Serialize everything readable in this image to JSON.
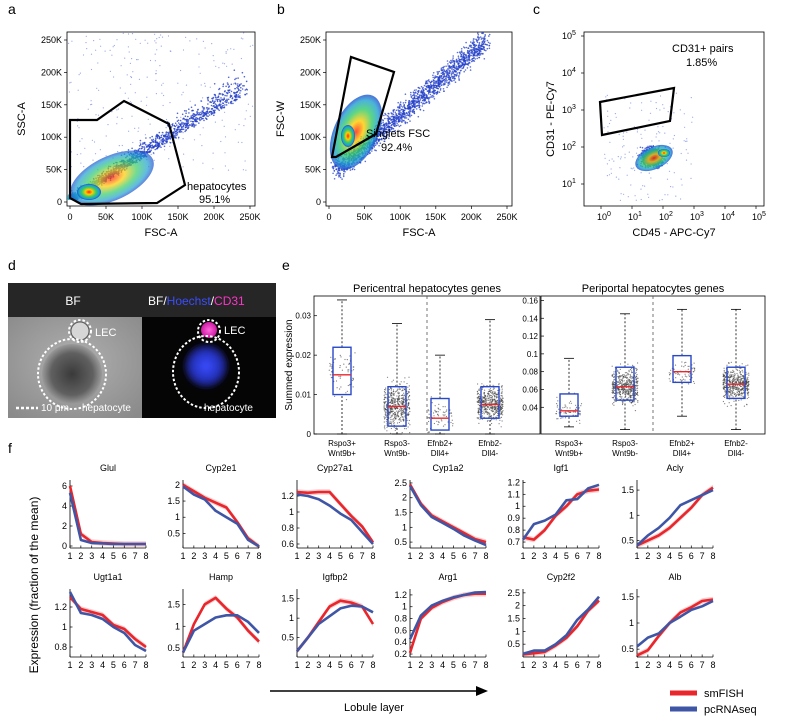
{
  "panel_letters": {
    "a": "a",
    "b": "b",
    "c": "c",
    "d": "d",
    "e": "e",
    "f": "f"
  },
  "flow": [
    {
      "id": "a",
      "xlabel": "FSC-A",
      "ylabel": "SSC-A",
      "xticks": [
        "0",
        "50K",
        "100K",
        "150K",
        "200K",
        "250K"
      ],
      "yticks": [
        "0",
        "50K",
        "100K",
        "150K",
        "200K",
        "250K"
      ],
      "gate_name": "hepatocytes",
      "gate_pct": "95.1%"
    },
    {
      "id": "b",
      "xlabel": "FSC-A",
      "ylabel": "FSC-W",
      "xticks": [
        "0",
        "50K",
        "100K",
        "150K",
        "200K",
        "250K"
      ],
      "yticks": [
        "0",
        "50K",
        "100K",
        "150K",
        "200K",
        "250K"
      ],
      "gate_name": "Singlets FSC",
      "gate_pct": "92.4%"
    },
    {
      "id": "c",
      "xlabel": "CD45 - APC-Cy7",
      "ylabel": "CD31 - PE-Cy7",
      "xticks": [
        "10^0",
        "10^1",
        "10^2",
        "10^3",
        "10^4",
        "10^5"
      ],
      "yticks": [
        "10^1",
        "10^2",
        "10^3",
        "10^4",
        "10^5"
      ],
      "gate_name": "CD31+ pairs",
      "gate_pct": "1.85%"
    }
  ],
  "microscopy": {
    "bf_label": "BF",
    "merge_label": {
      "bf": "BF/",
      "hoechst": "Hoechst",
      "slash": "/",
      "cd31": "CD31"
    },
    "lec_label": "LEC",
    "hep_label": "hepatocyte",
    "scale_label": "10 μm",
    "colors": {
      "hoechst": "#3a4dff",
      "cd31": "#ff33cc"
    }
  },
  "chart_data": [
    {
      "type": "box",
      "panel": "e-left",
      "title": "Pericentral hepatocytes genes",
      "ylabel": "Summed expression",
      "ylim": [
        0,
        0.035
      ],
      "yticks": [
        "0",
        "0.01",
        "0.02",
        "0.03"
      ],
      "categories": [
        [
          "Rspo3+",
          "Wnt9b+"
        ],
        [
          "Rspo3-",
          "Wnt9b-"
        ],
        [
          "Efnb2+",
          "Dll4+"
        ],
        [
          "Efnb2-",
          "Dll4-"
        ]
      ],
      "boxes": [
        {
          "q1": 0.01,
          "median": 0.015,
          "q3": 0.022,
          "whisker_low": 0.0,
          "whisker_high": 0.034
        },
        {
          "q1": 0.002,
          "median": 0.007,
          "q3": 0.012,
          "whisker_low": 0.0,
          "whisker_high": 0.028
        },
        {
          "q1": 0.001,
          "median": 0.004,
          "q3": 0.009,
          "whisker_low": 0.0,
          "whisker_high": 0.02
        },
        {
          "q1": 0.004,
          "median": 0.0075,
          "q3": 0.012,
          "whisker_low": 0.0,
          "whisker_high": 0.029
        }
      ]
    },
    {
      "type": "box",
      "panel": "e-right",
      "title": "Periportal hepatocytes genes",
      "ylabel": "",
      "ylim": [
        0.01,
        0.165
      ],
      "yticks": [
        "0.04",
        "0.06",
        "0.08",
        "0.1",
        "0.12",
        "0.14",
        "0.16"
      ],
      "categories": [
        [
          "Rspo3+",
          "Wnt9b+"
        ],
        [
          "Rspo3-",
          "Wnt9b-"
        ],
        [
          "Efnb2+",
          "Dll4+"
        ],
        [
          "Efnb2-",
          "Dll4-"
        ]
      ],
      "boxes": [
        {
          "q1": 0.03,
          "median": 0.036,
          "q3": 0.055,
          "whisker_low": 0.018,
          "whisker_high": 0.095
        },
        {
          "q1": 0.048,
          "median": 0.063,
          "q3": 0.085,
          "whisker_low": 0.015,
          "whisker_high": 0.145
        },
        {
          "q1": 0.068,
          "median": 0.08,
          "q3": 0.098,
          "whisker_low": 0.03,
          "whisker_high": 0.15
        },
        {
          "q1": 0.05,
          "median": 0.066,
          "q3": 0.085,
          "whisker_low": 0.015,
          "whisker_high": 0.15
        }
      ]
    },
    {
      "type": "line",
      "panel": "f",
      "xlabel": "Lobule layer",
      "ylabel": "Expression (fraction of the mean)",
      "x": [
        1,
        2,
        3,
        4,
        5,
        6,
        7,
        8
      ],
      "legend": [
        {
          "name": "smFISH",
          "color": "#e8262c"
        },
        {
          "name": "pcRNAseq",
          "color": "#3f56a6"
        }
      ],
      "genes": [
        {
          "name": "Glul",
          "ylim": [
            -0.2,
            6.6
          ],
          "yticks": [
            0,
            2,
            4,
            6
          ],
          "ytick_labels": [
            "0",
            "2",
            "4",
            "6"
          ],
          "smFISH": [
            6.0,
            1.2,
            0.4,
            0.3,
            0.25,
            0.2,
            0.2,
            0.2
          ],
          "pcRNAseq": [
            5.3,
            0.6,
            0.3,
            0.25,
            0.2,
            0.2,
            0.2,
            0.2
          ]
        },
        {
          "name": "Cyp2e1",
          "ylim": [
            0.05,
            2.15
          ],
          "yticks": [
            0.5,
            1,
            1.5,
            2
          ],
          "ytick_labels": [
            "0.5",
            "1",
            "1.5",
            "2"
          ],
          "smFISH": [
            2.0,
            1.8,
            1.6,
            1.45,
            1.3,
            0.85,
            0.35,
            0.1
          ],
          "pcRNAseq": [
            1.95,
            1.7,
            1.55,
            1.2,
            1.0,
            0.8,
            0.3,
            0.1
          ]
        },
        {
          "name": "Cyp27a1",
          "ylim": [
            0.55,
            1.4
          ],
          "yticks": [
            0.6,
            0.8,
            1,
            1.2
          ],
          "ytick_labels": [
            "0.6",
            "0.8",
            "1",
            "1.2"
          ],
          "smFISH": [
            1.25,
            1.24,
            1.25,
            1.25,
            1.1,
            0.95,
            0.82,
            0.62
          ],
          "pcRNAseq": [
            1.22,
            1.2,
            1.16,
            1.08,
            0.98,
            0.9,
            0.75,
            0.6
          ]
        },
        {
          "name": "Cyp1a2",
          "ylim": [
            0.3,
            2.6
          ],
          "yticks": [
            0.5,
            1,
            1.5,
            2,
            2.5
          ],
          "ytick_labels": [
            "0.5",
            "1",
            "1.5",
            "2",
            "2.5"
          ],
          "smFISH": [
            2.45,
            1.8,
            1.4,
            1.2,
            1.0,
            0.8,
            0.6,
            0.5
          ],
          "pcRNAseq": [
            2.4,
            1.75,
            1.35,
            1.15,
            0.95,
            0.72,
            0.55,
            0.4
          ]
        },
        {
          "name": "Igf1",
          "ylim": [
            0.65,
            1.22
          ],
          "yticks": [
            0.7,
            0.8,
            0.9,
            1,
            1.1,
            1.2
          ],
          "ytick_labels": [
            "0.7",
            "0.8",
            "0.9",
            "1",
            "1.1",
            "1.2"
          ],
          "smFISH": [
            0.74,
            0.72,
            0.8,
            0.92,
            1.0,
            1.1,
            1.13,
            1.14
          ],
          "pcRNAseq": [
            0.72,
            0.85,
            0.88,
            0.93,
            1.05,
            1.06,
            1.15,
            1.18
          ]
        },
        {
          "name": "Acly",
          "ylim": [
            0.35,
            1.7
          ],
          "yticks": [
            0.5,
            1,
            1.5
          ],
          "ytick_labels": [
            "0.5",
            "1",
            "1.5"
          ],
          "smFISH": [
            0.4,
            0.5,
            0.6,
            0.75,
            0.95,
            1.15,
            1.4,
            1.55
          ],
          "pcRNAseq": [
            0.4,
            0.6,
            0.75,
            0.95,
            1.2,
            1.3,
            1.4,
            1.5
          ]
        },
        {
          "name": "Ugt1a1",
          "ylim": [
            0.7,
            1.38
          ],
          "yticks": [
            0.8,
            1,
            1.2
          ],
          "ytick_labels": [
            "0.8",
            "1",
            "1.2"
          ],
          "smFISH": [
            1.3,
            1.18,
            1.15,
            1.12,
            1.02,
            0.98,
            0.88,
            0.8
          ],
          "pcRNAseq": [
            1.35,
            1.14,
            1.12,
            1.08,
            1.0,
            0.94,
            0.82,
            0.76
          ]
        },
        {
          "name": "Hamp",
          "ylim": [
            0.3,
            1.85
          ],
          "yticks": [
            0.5,
            1,
            1.5
          ],
          "ytick_labels": [
            "0.5",
            "1",
            "1.5"
          ],
          "smFISH": [
            0.4,
            1.05,
            1.5,
            1.65,
            1.4,
            1.2,
            0.9,
            0.65
          ],
          "pcRNAseq": [
            0.4,
            0.9,
            1.05,
            1.2,
            1.25,
            1.25,
            1.1,
            0.85
          ]
        },
        {
          "name": "Igfbp2",
          "ylim": [
            0.0,
            1.75
          ],
          "yticks": [
            0.5,
            1,
            1.5
          ],
          "ytick_labels": [
            "0.5",
            "1",
            "1.5"
          ],
          "smFISH": [
            0.15,
            0.5,
            0.9,
            1.3,
            1.45,
            1.4,
            1.3,
            0.85
          ],
          "pcRNAseq": [
            0.15,
            0.5,
            0.85,
            1.05,
            1.25,
            1.32,
            1.3,
            1.15
          ]
        },
        {
          "name": "Arg1",
          "ylim": [
            0.15,
            1.3
          ],
          "yticks": [
            0.2,
            0.4,
            0.6,
            0.8,
            1,
            1.2
          ],
          "ytick_labels": [
            "0.2",
            "0.4",
            "0.6",
            "0.8",
            "1",
            "1.2"
          ],
          "smFISH": [
            0.22,
            0.8,
            0.98,
            1.08,
            1.15,
            1.2,
            1.22,
            1.22
          ],
          "pcRNAseq": [
            0.45,
            0.85,
            1.02,
            1.1,
            1.16,
            1.2,
            1.24,
            1.25
          ]
        },
        {
          "name": "Cyp2f2",
          "ylim": [
            0.0,
            2.65
          ],
          "yticks": [
            0.5,
            1,
            1.5,
            2,
            2.5
          ],
          "ytick_labels": [
            "0.5",
            "1",
            "1.5",
            "2",
            "2.5"
          ],
          "smFISH": [
            0.1,
            0.15,
            0.2,
            0.45,
            0.75,
            1.2,
            1.8,
            2.2
          ],
          "pcRNAseq": [
            0.12,
            0.25,
            0.25,
            0.5,
            0.85,
            1.45,
            1.85,
            2.35
          ]
        },
        {
          "name": "Alb",
          "ylim": [
            0.35,
            1.65
          ],
          "yticks": [
            0.5,
            1,
            1.5
          ],
          "ytick_labels": [
            "0.5",
            "1",
            "1.5"
          ],
          "smFISH": [
            0.38,
            0.48,
            0.75,
            1.0,
            1.2,
            1.3,
            1.42,
            1.45
          ],
          "pcRNAseq": [
            0.55,
            0.72,
            0.8,
            1.0,
            1.12,
            1.25,
            1.32,
            1.42
          ]
        }
      ]
    }
  ]
}
